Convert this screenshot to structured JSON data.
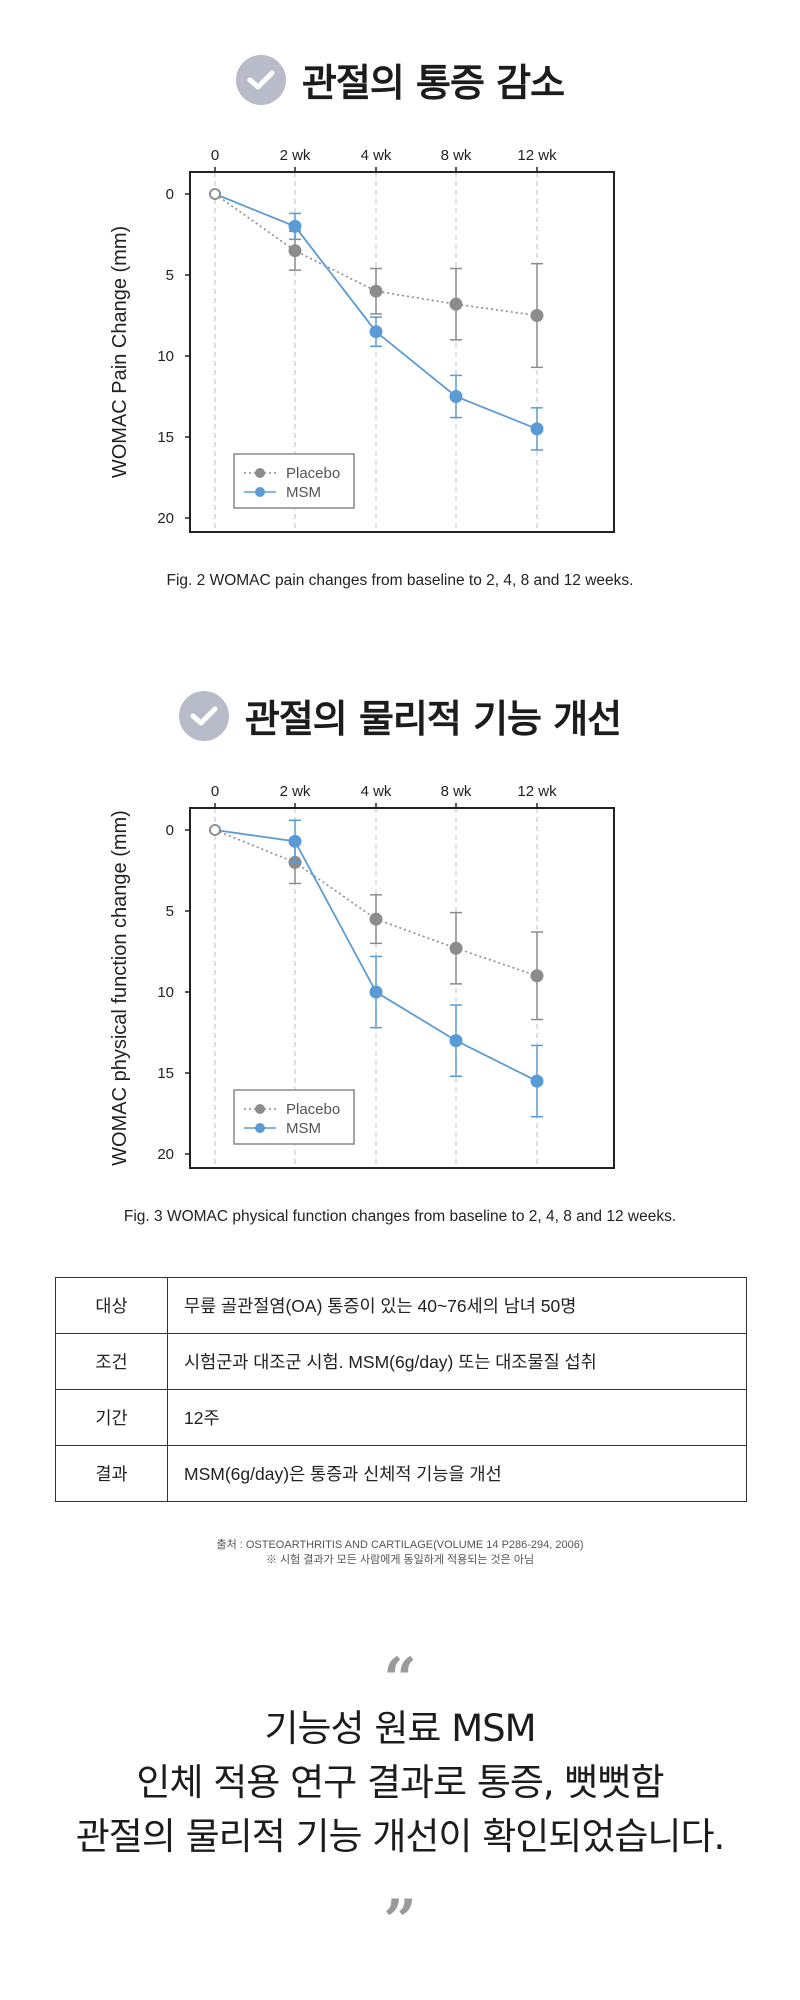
{
  "section1": {
    "title": "관절의 통증 감소"
  },
  "section2": {
    "title": "관절의 물리적 기능 개선"
  },
  "chart_data": [
    {
      "type": "line",
      "categories": [
        "0",
        "2 wk",
        "4 wk",
        "8 wk",
        "12 wk"
      ],
      "ylabel": "WOMAC Pain Change (mm)",
      "ylim": [
        0,
        20
      ],
      "y_inverted": true,
      "yticks": [
        0,
        5,
        10,
        15,
        20
      ],
      "legend_position": "bottom-left",
      "series": [
        {
          "name": "Placebo",
          "color": "#8c8c8c",
          "style": "dotted",
          "values": [
            0,
            3.5,
            6,
            6.8,
            7.5
          ],
          "errors": [
            0,
            1.2,
            1.4,
            2.2,
            3.2
          ]
        },
        {
          "name": "MSM",
          "color": "#5b9bd5",
          "style": "solid",
          "values": [
            0,
            2,
            8.5,
            12.5,
            14.5
          ],
          "errors": [
            0,
            0.8,
            0.9,
            1.3,
            1.3
          ]
        }
      ],
      "caption": "Fig. 2 WOMAC pain changes from baseline to 2, 4, 8 and 12 weeks."
    },
    {
      "type": "line",
      "categories": [
        "0",
        "2 wk",
        "4 wk",
        "8 wk",
        "12 wk"
      ],
      "ylabel": "WOMAC physical function change (mm)",
      "ylim": [
        0,
        20
      ],
      "y_inverted": true,
      "yticks": [
        0,
        5,
        10,
        15,
        20
      ],
      "legend_position": "bottom-left",
      "series": [
        {
          "name": "Placebo",
          "color": "#8c8c8c",
          "style": "dotted",
          "values": [
            0,
            2,
            5.5,
            7.3,
            9
          ],
          "errors": [
            0,
            1.3,
            1.5,
            2.2,
            2.7
          ]
        },
        {
          "name": "MSM",
          "color": "#5b9bd5",
          "style": "solid",
          "values": [
            0,
            0.7,
            10,
            13,
            15.5
          ],
          "errors": [
            0,
            1.3,
            2.2,
            2.2,
            2.2
          ]
        }
      ],
      "caption": "Fig. 3 WOMAC physical function changes from baseline to 2, 4, 8 and 12 weeks."
    }
  ],
  "table": {
    "rows": [
      {
        "key": "대상",
        "value": "무릎 골관절염(OA) 통증이 있는 40~76세의 남녀 50명"
      },
      {
        "key": "조건",
        "value": "시험군과 대조군 시험. MSM(6g/day) 또는 대조물질 섭취"
      },
      {
        "key": "기간",
        "value": "12주"
      },
      {
        "key": "결과",
        "value": "MSM(6g/day)은 통증과 신체적 기능을 개선"
      }
    ]
  },
  "source": {
    "line1": "출처 : OSTEOARTHRITIS AND CARTILAGE(VOLUME 14 P286-294, 2006)",
    "line2": "※ 시험 결과가 모든 사람에게 동일하게 적용되는 것은 아님"
  },
  "closing": {
    "open_quote": "“",
    "close_quote": "”",
    "line1": "기능성 원료 MSM",
    "line2": "인체 적용 연구 결과로 통증, 뻣뻣함",
    "line3": "관절의 물리적 기능 개선이 확인되었습니다."
  }
}
